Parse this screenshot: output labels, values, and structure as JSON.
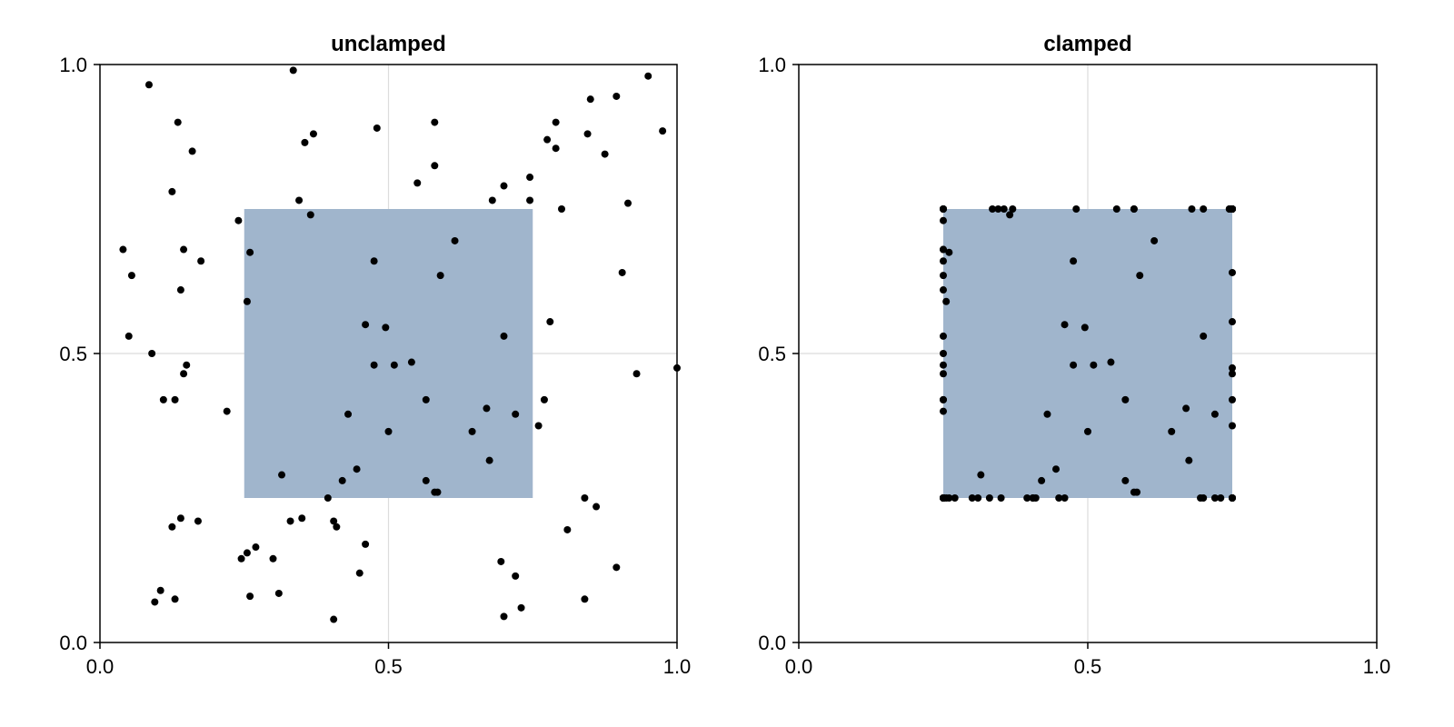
{
  "chart_data": [
    {
      "type": "scatter",
      "title": "unclamped",
      "xlim": [
        0,
        1
      ],
      "ylim": [
        0,
        1
      ],
      "xticks": [
        "0.0",
        "0.5",
        "1.0"
      ],
      "yticks": [
        "0.0",
        "0.5",
        "1.0"
      ],
      "grid": true,
      "rect": {
        "x": [
          0.25,
          0.75
        ],
        "y": [
          0.25,
          0.75
        ],
        "color": "#a0b5cc"
      },
      "point_color": "#000000",
      "points": [
        [
          0.04,
          0.68
        ],
        [
          0.05,
          0.53
        ],
        [
          0.055,
          0.635
        ],
        [
          0.085,
          0.965
        ],
        [
          0.09,
          0.5
        ],
        [
          0.095,
          0.07
        ],
        [
          0.105,
          0.09
        ],
        [
          0.11,
          0.42
        ],
        [
          0.125,
          0.78
        ],
        [
          0.125,
          0.2
        ],
        [
          0.13,
          0.075
        ],
        [
          0.13,
          0.42
        ],
        [
          0.135,
          0.9
        ],
        [
          0.14,
          0.215
        ],
        [
          0.14,
          0.61
        ],
        [
          0.145,
          0.465
        ],
        [
          0.145,
          0.68
        ],
        [
          0.15,
          0.48
        ],
        [
          0.16,
          0.85
        ],
        [
          0.17,
          0.21
        ],
        [
          0.175,
          0.66
        ],
        [
          0.22,
          0.4
        ],
        [
          0.24,
          0.73
        ],
        [
          0.245,
          0.145
        ],
        [
          0.255,
          0.59
        ],
        [
          0.255,
          0.155
        ],
        [
          0.26,
          0.08
        ],
        [
          0.26,
          0.675
        ],
        [
          0.27,
          0.165
        ],
        [
          0.3,
          0.145
        ],
        [
          0.31,
          0.085
        ],
        [
          0.315,
          0.29
        ],
        [
          0.33,
          0.21
        ],
        [
          0.335,
          0.99
        ],
        [
          0.345,
          0.765
        ],
        [
          0.35,
          0.215
        ],
        [
          0.355,
          0.865
        ],
        [
          0.365,
          0.74
        ],
        [
          0.37,
          0.88
        ],
        [
          0.395,
          0.25
        ],
        [
          0.405,
          0.04
        ],
        [
          0.405,
          0.21
        ],
        [
          0.41,
          0.2
        ],
        [
          0.42,
          0.28
        ],
        [
          0.43,
          0.395
        ],
        [
          0.445,
          0.3
        ],
        [
          0.45,
          0.12
        ],
        [
          0.46,
          0.55
        ],
        [
          0.46,
          0.17
        ],
        [
          0.475,
          0.48
        ],
        [
          0.475,
          0.66
        ],
        [
          0.48,
          0.89
        ],
        [
          0.495,
          0.545
        ],
        [
          0.5,
          0.365
        ],
        [
          0.51,
          0.48
        ],
        [
          0.54,
          0.485
        ],
        [
          0.55,
          0.795
        ],
        [
          0.565,
          0.42
        ],
        [
          0.565,
          0.28
        ],
        [
          0.58,
          0.26
        ],
        [
          0.58,
          0.825
        ],
        [
          0.585,
          0.26
        ],
        [
          0.59,
          0.635
        ],
        [
          0.58,
          0.9
        ],
        [
          0.615,
          0.695
        ],
        [
          0.645,
          0.365
        ],
        [
          0.67,
          0.405
        ],
        [
          0.675,
          0.315
        ],
        [
          0.68,
          0.765
        ],
        [
          0.695,
          0.14
        ],
        [
          0.7,
          0.045
        ],
        [
          0.7,
          0.79
        ],
        [
          0.7,
          0.53
        ],
        [
          0.72,
          0.115
        ],
        [
          0.72,
          0.395
        ],
        [
          0.73,
          0.06
        ],
        [
          0.745,
          0.765
        ],
        [
          0.745,
          0.805
        ],
        [
          0.76,
          0.375
        ],
        [
          0.77,
          0.42
        ],
        [
          0.775,
          0.87
        ],
        [
          0.78,
          0.555
        ],
        [
          0.79,
          0.9
        ],
        [
          0.79,
          0.855
        ],
        [
          0.8,
          0.75
        ],
        [
          0.81,
          0.195
        ],
        [
          0.84,
          0.25
        ],
        [
          0.84,
          0.075
        ],
        [
          0.845,
          0.88
        ],
        [
          0.85,
          0.94
        ],
        [
          0.86,
          0.235
        ],
        [
          0.875,
          0.845
        ],
        [
          0.895,
          0.945
        ],
        [
          0.895,
          0.13
        ],
        [
          0.905,
          0.64
        ],
        [
          0.915,
          0.76
        ],
        [
          0.93,
          0.465
        ],
        [
          0.95,
          0.98
        ],
        [
          0.975,
          0.885
        ],
        [
          1.0,
          0.475
        ]
      ]
    },
    {
      "type": "scatter",
      "title": "clamped",
      "xlim": [
        0,
        1
      ],
      "ylim": [
        0,
        1
      ],
      "xticks": [
        "0.0",
        "0.5",
        "1.0"
      ],
      "yticks": [
        "0.0",
        "0.5",
        "1.0"
      ],
      "grid": true,
      "rect": {
        "x": [
          0.25,
          0.75
        ],
        "y": [
          0.25,
          0.75
        ],
        "color": "#a0b5cc"
      },
      "point_color": "#000000",
      "clamp": [
        0.25,
        0.75
      ]
    }
  ]
}
